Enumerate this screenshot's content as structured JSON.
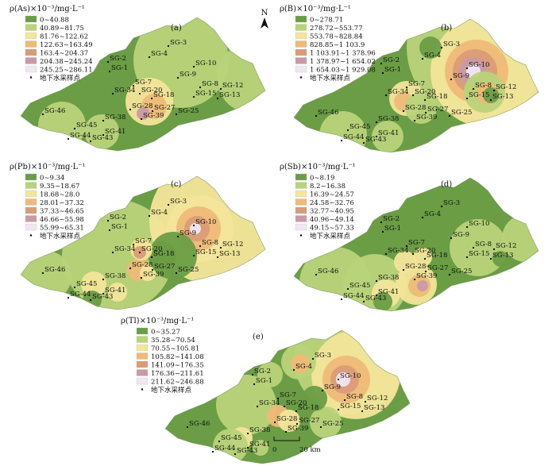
{
  "sample_sites": [
    "SG-1",
    "SG-2",
    "SG-3",
    "SG-4",
    "SG-7",
    "SG-8",
    "SG-9",
    "SG-10",
    "SG-12",
    "SG-13",
    "SG-15",
    "SG-18",
    "SG-20",
    "SG-25",
    "SG-27",
    "SG-28",
    "SG-34",
    "SG-38",
    "SG-39",
    "SG-41",
    "SG-43",
    "SG-44",
    "SG-45",
    "SG-46"
  ],
  "point_legend_label": "地下水采样点",
  "north_label": "N",
  "scale_bar": {
    "zero": "0",
    "end": "20 km"
  },
  "class_colors": [
    "#6a9d45",
    "#b9d37a",
    "#f3e59a",
    "#eebb77",
    "#d99c78",
    "#c99aa6",
    "#f1e7f3"
  ],
  "panels": [
    {
      "id": "a",
      "label": "(a)",
      "title_sym": "ρ(As)",
      "title_unit": "×10⁻³/mg·L⁻¹",
      "classes": [
        "0~40.88",
        "40.89~81.75",
        "81.76~122.62",
        "122.63~163.49",
        "163.4~204.37",
        "204.38~245.24",
        "245.25~286.11"
      ]
    },
    {
      "id": "b",
      "label": "(b)",
      "title_sym": "ρ(B)",
      "title_unit": "×10⁻³/mg·L⁻¹",
      "classes": [
        "0~278.71",
        "278.72~553.77",
        "553.78~828.84",
        "828.85~1 103.9",
        "1 103.91~1 378.96",
        "1 378.97~1 654.02",
        "1 654.03~1 929.08"
      ]
    },
    {
      "id": "c",
      "label": "(c)",
      "title_sym": "ρ(Pb)",
      "title_unit": "×10⁻³/mg·L⁻¹",
      "classes": [
        "0~9.34",
        "9.35~18.67",
        "18.68~28.0",
        "28.01~37.32",
        "37.33~46.65",
        "46.66~55.98",
        "55.99~65.31"
      ]
    },
    {
      "id": "d",
      "label": "(d)",
      "title_sym": "ρ(Sb)",
      "title_unit": "×10⁻³/mg·L⁻¹",
      "classes": [
        "0~8.19",
        "8.2~16.38",
        "16.39~24.57",
        "24.58~32.76",
        "32.77~40.95",
        "40.96~49.14",
        "49.15~57.33"
      ]
    },
    {
      "id": "e",
      "label": "(e)",
      "title_sym": "ρ(Tl)",
      "title_unit": "×10⁻³/mg·L⁻¹",
      "classes": [
        "0~35.27",
        "35.28~70.54",
        "70.55~105.81",
        "105.82~141.08",
        "141.09~176.35",
        "176.36~211.61",
        "211.62~246.88"
      ]
    }
  ]
}
